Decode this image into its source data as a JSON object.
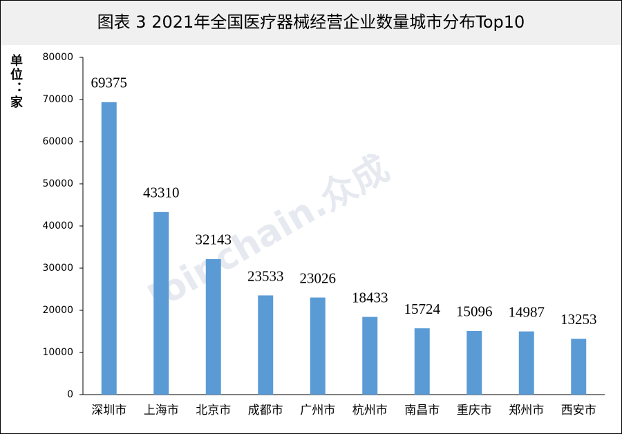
{
  "chart_data": {
    "type": "bar",
    "title": "图表 3  2021年全国医疗器械经营企业数量城市分布Top10",
    "y_label": "单位：家",
    "watermark": "Joinchain.众成",
    "categories": [
      "深圳市",
      "上海市",
      "北京市",
      "成都市",
      "广州市",
      "杭州市",
      "南昌市",
      "重庆市",
      "郑州市",
      "西安市"
    ],
    "values": [
      69375,
      43310,
      32143,
      23533,
      23026,
      18433,
      15724,
      15096,
      14987,
      13253
    ],
    "color": "#5b9bd5",
    "ylim": [
      0,
      80000
    ],
    "yticks": [
      0,
      10000,
      20000,
      30000,
      40000,
      50000,
      60000,
      70000,
      80000
    ],
    "grid": false
  }
}
